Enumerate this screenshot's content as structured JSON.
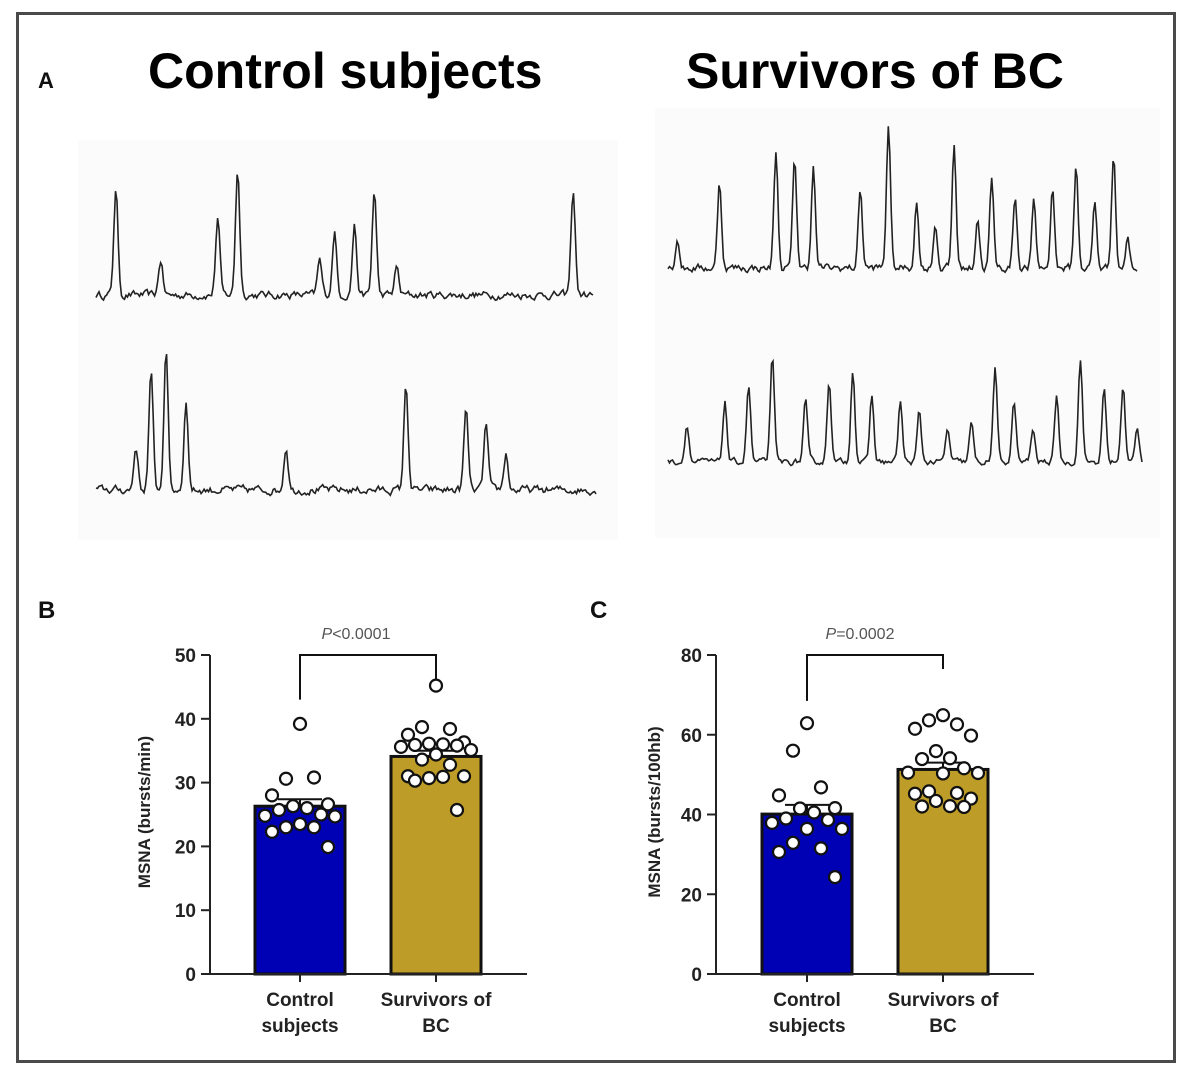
{
  "panel_a": {
    "letter": "A",
    "titles": [
      "Control subjects",
      "Survivors of BC"
    ],
    "traces": [
      {
        "name": "control-trace-1",
        "group": "Control subjects",
        "peaks": [
          0.04,
          0.13,
          0.245,
          0.285,
          0.45,
          0.48,
          0.52,
          0.56,
          0.605,
          0.96
        ],
        "peak_heights": [
          0.75,
          0.25,
          0.55,
          0.9,
          0.25,
          0.45,
          0.5,
          0.75,
          0.2,
          0.75
        ]
      },
      {
        "name": "control-trace-2",
        "group": "Control subjects",
        "peaks": [
          0.08,
          0.11,
          0.14,
          0.18,
          0.38,
          0.62,
          0.74,
          0.78,
          0.82
        ],
        "peak_heights": [
          0.3,
          0.8,
          0.95,
          0.6,
          0.3,
          0.72,
          0.55,
          0.45,
          0.25
        ]
      },
      {
        "name": "survivor-trace-1",
        "group": "Survivors of BC",
        "peaks": [
          0.02,
          0.11,
          0.23,
          0.27,
          0.31,
          0.41,
          0.47,
          0.53,
          0.57,
          0.61,
          0.66,
          0.69,
          0.74,
          0.78,
          0.82,
          0.87,
          0.91,
          0.95,
          0.98
        ],
        "peak_heights": [
          0.2,
          0.6,
          0.8,
          0.75,
          0.7,
          0.55,
          1.0,
          0.45,
          0.3,
          0.85,
          0.35,
          0.6,
          0.5,
          0.45,
          0.55,
          0.7,
          0.45,
          0.8,
          0.2
        ]
      },
      {
        "name": "survivor-trace-2",
        "group": "Survivors of BC",
        "peaks": [
          0.04,
          0.12,
          0.17,
          0.22,
          0.29,
          0.34,
          0.39,
          0.43,
          0.49,
          0.53,
          0.59,
          0.64,
          0.69,
          0.73,
          0.77,
          0.82,
          0.87,
          0.92,
          0.96,
          0.99
        ],
        "peak_heights": [
          0.35,
          0.55,
          0.7,
          0.95,
          0.55,
          0.75,
          0.85,
          0.6,
          0.55,
          0.45,
          0.3,
          0.35,
          0.85,
          0.55,
          0.3,
          0.6,
          0.95,
          0.65,
          0.7,
          0.3
        ]
      }
    ]
  },
  "chart_data": [
    {
      "panel": "B",
      "type": "bar",
      "title": "",
      "xlabel": "",
      "ylabel": "MSNA (bursts/min)",
      "ylim": [
        0,
        50
      ],
      "yticks": [
        0,
        10,
        20,
        30,
        40,
        50
      ],
      "categories": [
        "Control subjects",
        "Survivors of BC"
      ],
      "category_lines": [
        [
          "Control",
          "subjects"
        ],
        [
          "Survivors of",
          "BC"
        ]
      ],
      "values": [
        26.3,
        34.1
      ],
      "sem": [
        1.1,
        0.9
      ],
      "colors": [
        "#0000b4",
        "#be9c28"
      ],
      "annotation": {
        "italic": "P",
        "text": "<0.0001",
        "bracket_top": 50,
        "left_end": 43,
        "right_end": 46
      },
      "points": [
        [
          39.2,
          30.6,
          30.8,
          28.0,
          26.6,
          26.3,
          26.0,
          25.7,
          25.0,
          24.8,
          24.7,
          23.5,
          23.0,
          23.0,
          22.3,
          19.9
        ],
        [
          45.2,
          38.7,
          38.4,
          37.5,
          36.3,
          36.1,
          36.0,
          35.9,
          35.8,
          35.6,
          35.1,
          34.4,
          33.6,
          32.8,
          31.0,
          31.0,
          30.7,
          30.9,
          30.3,
          25.7
        ]
      ],
      "grid": false
    },
    {
      "panel": "C",
      "type": "bar",
      "title": "",
      "xlabel": "",
      "ylabel": "MSNA (bursts/100hb)",
      "ylim": [
        0,
        80
      ],
      "yticks": [
        0,
        20,
        40,
        60,
        80
      ],
      "categories": [
        "Control subjects",
        "Survivors of BC"
      ],
      "category_lines": [
        [
          "Control",
          "subjects"
        ],
        [
          "Survivors of",
          "BC"
        ]
      ],
      "values": [
        40.1,
        51.3
      ],
      "sem": [
        2.3,
        1.7
      ],
      "colors": [
        "#0000b4",
        "#be9c28"
      ],
      "annotation": {
        "italic": "P",
        "text": "=0.0002",
        "bracket_top": 80,
        "left_end": 68.5,
        "right_end": 76.5
      },
      "points": [
        [
          62.9,
          56.0,
          46.8,
          44.8,
          41.6,
          41.5,
          40.5,
          39.0,
          38.6,
          37.9,
          36.4,
          36.4,
          32.9,
          31.5,
          30.6,
          24.3
        ],
        [
          64.9,
          63.6,
          62.6,
          61.5,
          59.8,
          55.9,
          54.1,
          53.9,
          51.6,
          50.5,
          50.4,
          50.3,
          45.8,
          45.4,
          45.2,
          44.0,
          43.4,
          42.1,
          42.0,
          41.9
        ]
      ],
      "grid": false
    }
  ]
}
